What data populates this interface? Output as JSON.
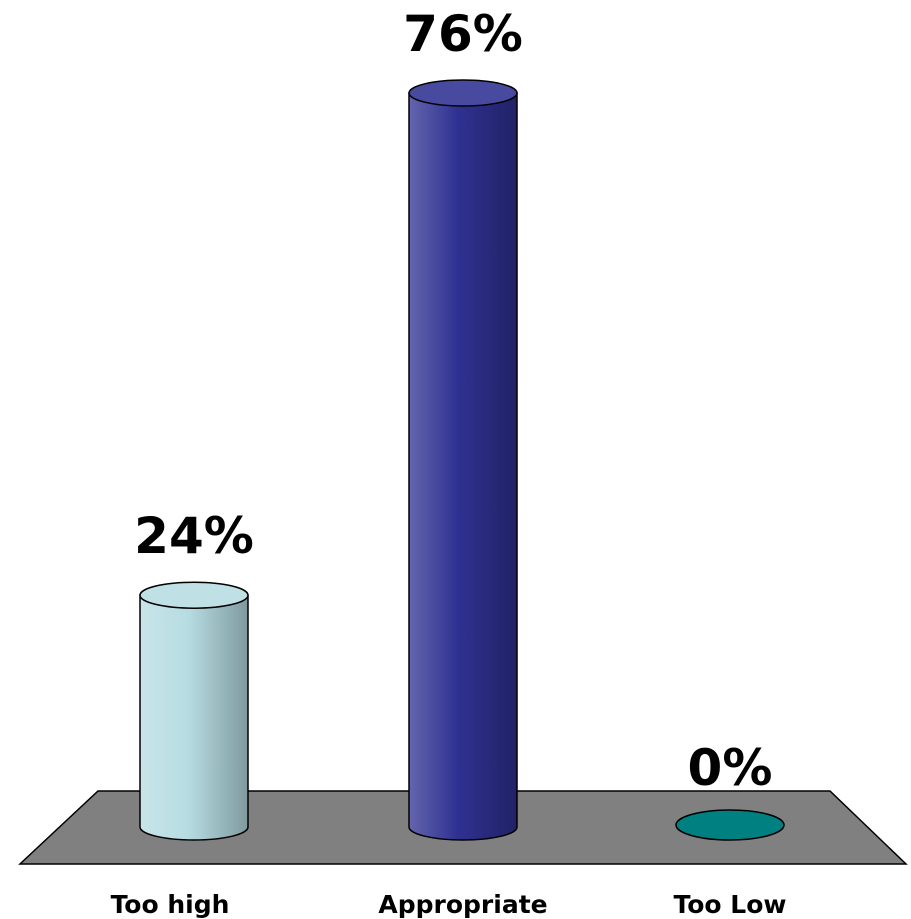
{
  "chart_data": {
    "type": "bar",
    "categories": [
      "Too high",
      "Appropriate",
      "Too Low"
    ],
    "values": [
      24,
      76,
      0
    ],
    "value_labels": [
      "24%",
      "76%",
      "0%"
    ],
    "ylim": [
      0,
      76
    ],
    "grid": false,
    "legend": "none",
    "style": "3d-cylinder",
    "colors": {
      "bars": [
        "#b6dce2",
        "#2f3192",
        "#008080"
      ],
      "floor": "#808080",
      "outline": "#000000"
    }
  }
}
